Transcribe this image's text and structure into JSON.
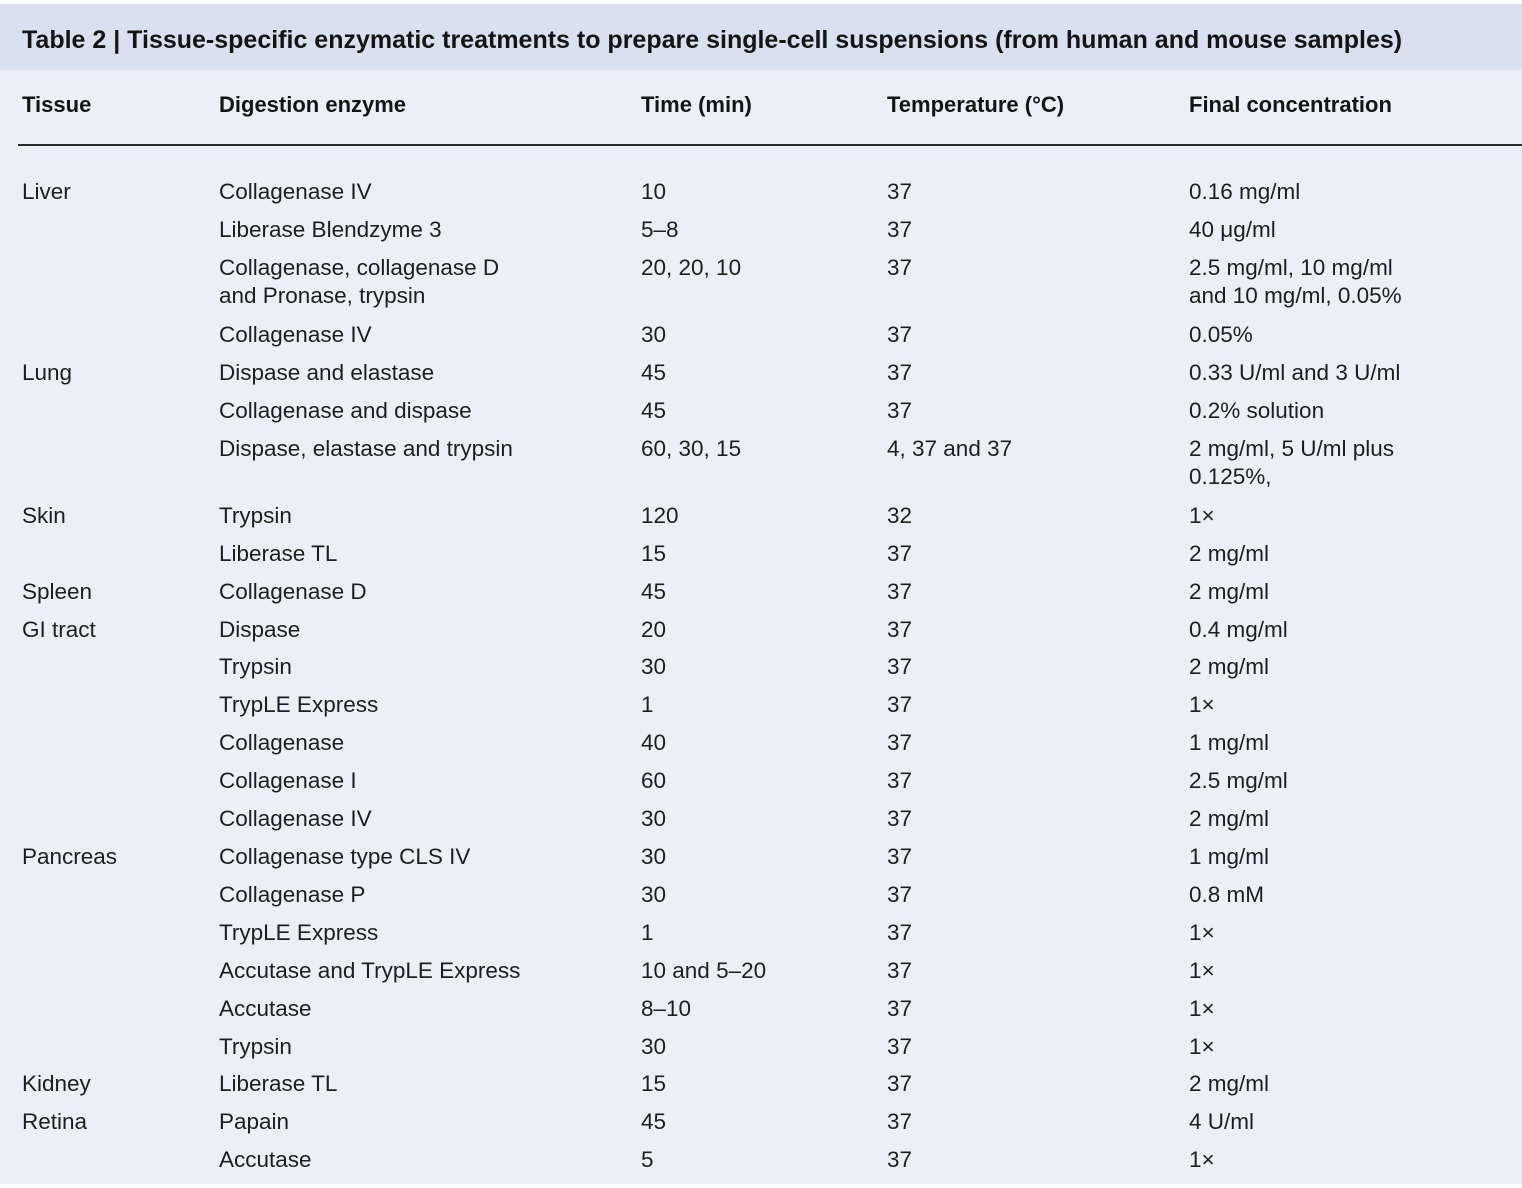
{
  "caption": "Table 2 | Tissue-specific enzymatic treatments to prepare single-cell suspensions (from human and mouse samples)",
  "columns": [
    "Tissue",
    "Digestion enzyme",
    "Time (min)",
    "Temperature (°C)",
    "Final concentration"
  ],
  "rows": [
    {
      "tissue": "Liver",
      "enzyme": "Collagenase IV",
      "time": "10",
      "temp": "37",
      "conc": "0.16 mg/ml"
    },
    {
      "tissue": "",
      "enzyme": "Liberase Blendzyme 3",
      "time": "5–8",
      "temp": "37",
      "conc": "40 μg/ml"
    },
    {
      "tissue": "",
      "enzyme": "Collagenase, collagenase D\nand Pronase, trypsin",
      "time": "20, 20, 10",
      "temp": "37",
      "conc": "2.5 mg/ml, 10 mg/ml\nand 10 mg/ml, 0.05%"
    },
    {
      "tissue": "",
      "enzyme": "Collagenase IV",
      "time": "30",
      "temp": "37",
      "conc": "0.05%"
    },
    {
      "tissue": "Lung",
      "enzyme": "Dispase and elastase",
      "time": "45",
      "temp": "37",
      "conc": "0.33 U/ml and 3 U/ml"
    },
    {
      "tissue": "",
      "enzyme": "Collagenase and dispase",
      "time": "45",
      "temp": "37",
      "conc": "0.2% solution"
    },
    {
      "tissue": "",
      "enzyme": "Dispase, elastase and trypsin",
      "time": "60, 30, 15",
      "temp": "4, 37 and 37",
      "conc": "2 mg/ml, 5 U/ml plus\n0.125%,"
    },
    {
      "tissue": "Skin",
      "enzyme": "Trypsin",
      "time": "120",
      "temp": "32",
      "conc": "1×"
    },
    {
      "tissue": "",
      "enzyme": "Liberase TL",
      "time": "15",
      "temp": "37",
      "conc": "2 mg/ml"
    },
    {
      "tissue": "Spleen",
      "enzyme": "Collagenase D",
      "time": "45",
      "temp": "37",
      "conc": "2 mg/ml"
    },
    {
      "tissue": "GI tract",
      "enzyme": "Dispase",
      "time": "20",
      "temp": "37",
      "conc": "0.4 mg/ml"
    },
    {
      "tissue": "",
      "enzyme": "Trypsin",
      "time": "30",
      "temp": "37",
      "conc": "2 mg/ml"
    },
    {
      "tissue": "",
      "enzyme": "TrypLE Express",
      "time": "1",
      "temp": "37",
      "conc": "1×"
    },
    {
      "tissue": "",
      "enzyme": "Collagenase",
      "time": "40",
      "temp": "37",
      "conc": "1 mg/ml"
    },
    {
      "tissue": "",
      "enzyme": "Collagenase I",
      "time": "60",
      "temp": "37",
      "conc": "2.5 mg/ml"
    },
    {
      "tissue": "",
      "enzyme": "Collagenase IV",
      "time": "30",
      "temp": "37",
      "conc": "2 mg/ml"
    },
    {
      "tissue": "Pancreas",
      "enzyme": "Collagenase type CLS IV",
      "time": "30",
      "temp": "37",
      "conc": "1 mg/ml"
    },
    {
      "tissue": "",
      "enzyme": "Collagenase P",
      "time": "30",
      "temp": "37",
      "conc": "0.8 mM"
    },
    {
      "tissue": "",
      "enzyme": "TrypLE Express",
      "time": "1",
      "temp": "37",
      "conc": "1×"
    },
    {
      "tissue": "",
      "enzyme": "Accutase and TrypLE Express",
      "time": "10 and 5–20",
      "temp": "37",
      "conc": "1×"
    },
    {
      "tissue": "",
      "enzyme": "Accutase",
      "time": "8–10",
      "temp": "37",
      "conc": "1×"
    },
    {
      "tissue": "",
      "enzyme": "Trypsin",
      "time": "30",
      "temp": "37",
      "conc": "1×"
    },
    {
      "tissue": "Kidney",
      "enzyme": "Liberase TL",
      "time": "15",
      "temp": "37",
      "conc": "2 mg/ml"
    },
    {
      "tissue": "Retina",
      "enzyme": "Papain",
      "time": "45",
      "temp": "37",
      "conc": "4 U/ml"
    },
    {
      "tissue": "",
      "enzyme": "Accutase",
      "time": "5",
      "temp": "37",
      "conc": "1×"
    }
  ]
}
